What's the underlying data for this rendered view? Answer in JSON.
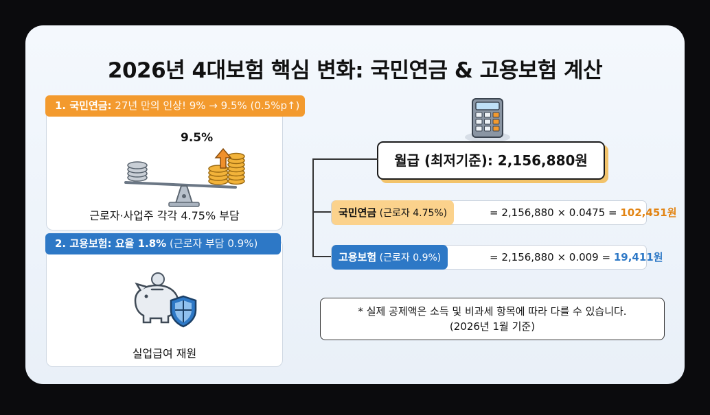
{
  "title": "2026년 4대보험 핵심 변화: 국민연금 & 고용보험 계산",
  "pension_panel": {
    "tag_bold": "1. 국민연금:",
    "tag_rest": " 27년 만의 인상! 9% → 9.5% (0.5%p↑)",
    "rate_label": "9.5%",
    "caption": "근로자·사업주 각각 4.75% 부담"
  },
  "employment_panel": {
    "tag_bold": "2. 고용보험: 요율 1.8%",
    "tag_rest": " (근로자 부담 0.9%)",
    "caption": "실업급여 재원"
  },
  "wage": {
    "label": "월급 (최저기준): 2,156,880원"
  },
  "calc_rows": [
    {
      "tag_bold": "국민연금",
      "tag_rest": " (근로자 4.75%)",
      "formula": "= 2,156,880 × 0.0475 = ",
      "result": "102,451원"
    },
    {
      "tag_bold": "고용보험",
      "tag_rest": " (근로자 0.9%)",
      "formula": "= 2,156,880 × 0.009 = ",
      "result": "19,411원"
    }
  ],
  "note": {
    "line1": "* 실제 공제액은 소득 및 비과세 항목에 따라 다를 수 있습니다.",
    "line2": "(2026년 1월 기준)"
  },
  "colors": {
    "orange": "#f39a2e",
    "blue": "#2d78c6",
    "result_orange": "#e28413"
  },
  "icons": [
    "scale-coins-icon",
    "arrow-up-icon",
    "piggy-bank-icon",
    "shield-icon",
    "calculator-icon"
  ]
}
